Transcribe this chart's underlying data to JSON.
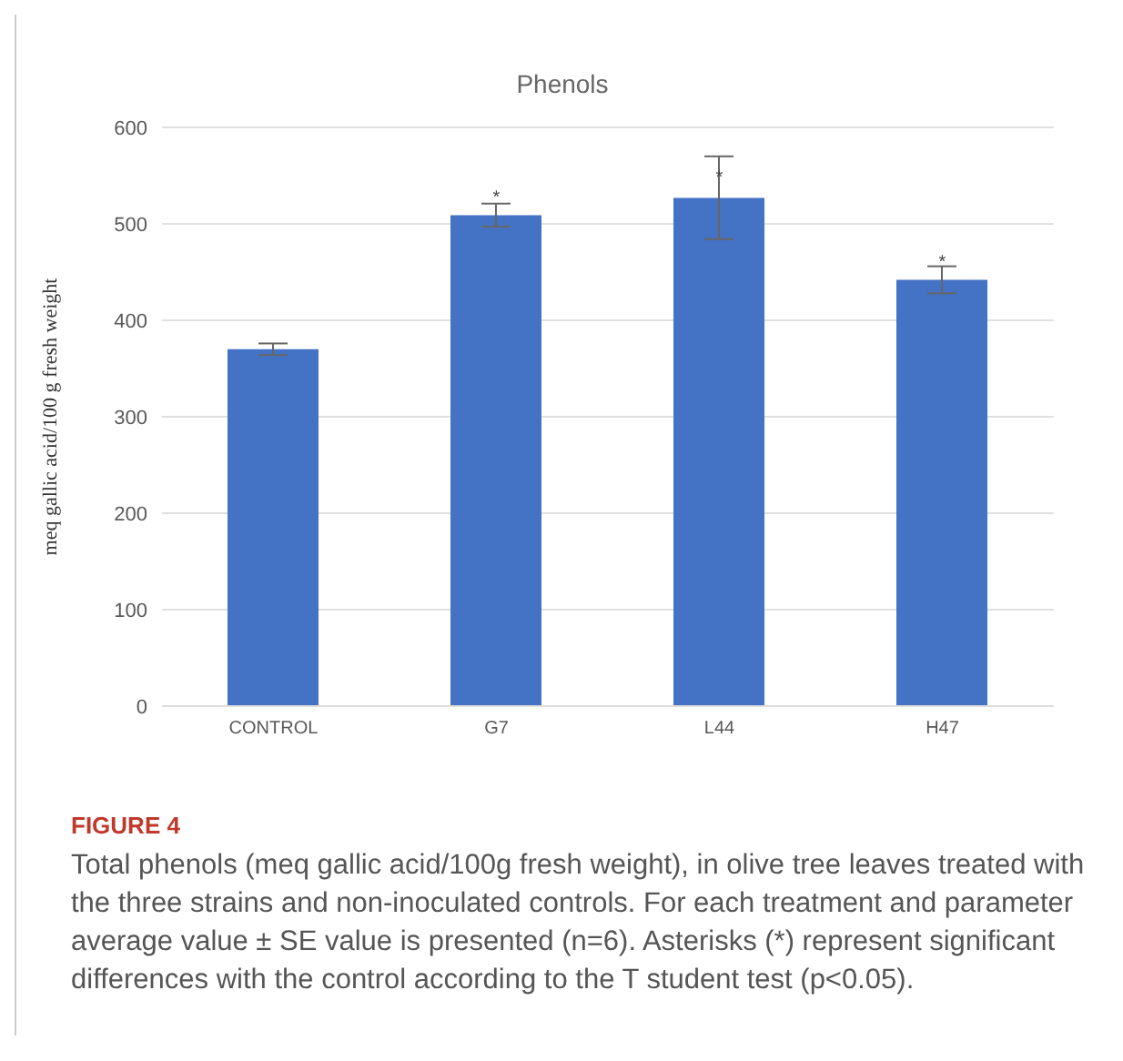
{
  "chart_data": {
    "type": "bar",
    "title": "Phenols",
    "ylabel": "meq gallic acid/100 g fresh weight",
    "categories": [
      "CONTROL",
      "G7",
      "L44",
      "H47"
    ],
    "values": [
      370,
      509,
      527,
      442
    ],
    "errors": [
      6,
      12,
      43,
      14
    ],
    "color": "#4472c4",
    "ylim": [
      0,
      600
    ],
    "yticks": [
      0,
      100,
      200,
      300,
      400,
      500,
      600
    ],
    "grid": "y",
    "legend": false,
    "annotations": [
      {
        "text": "*",
        "x": "G7",
        "y": 528
      },
      {
        "text": "*",
        "x": "L44",
        "y": 549
      },
      {
        "text": "*",
        "x": "H47",
        "y": 461
      },
      "FIGURE 4",
      "Total phenols (meq gallic acid/100g fresh weight), in olive tree leaves treated with the three strains and non-inoculated controls. For each treatment and parameter average value ± SE value is presented (n=6). Asterisks (*) represent significant differences with the control according to the T student test (p<0.05)."
    ]
  }
}
